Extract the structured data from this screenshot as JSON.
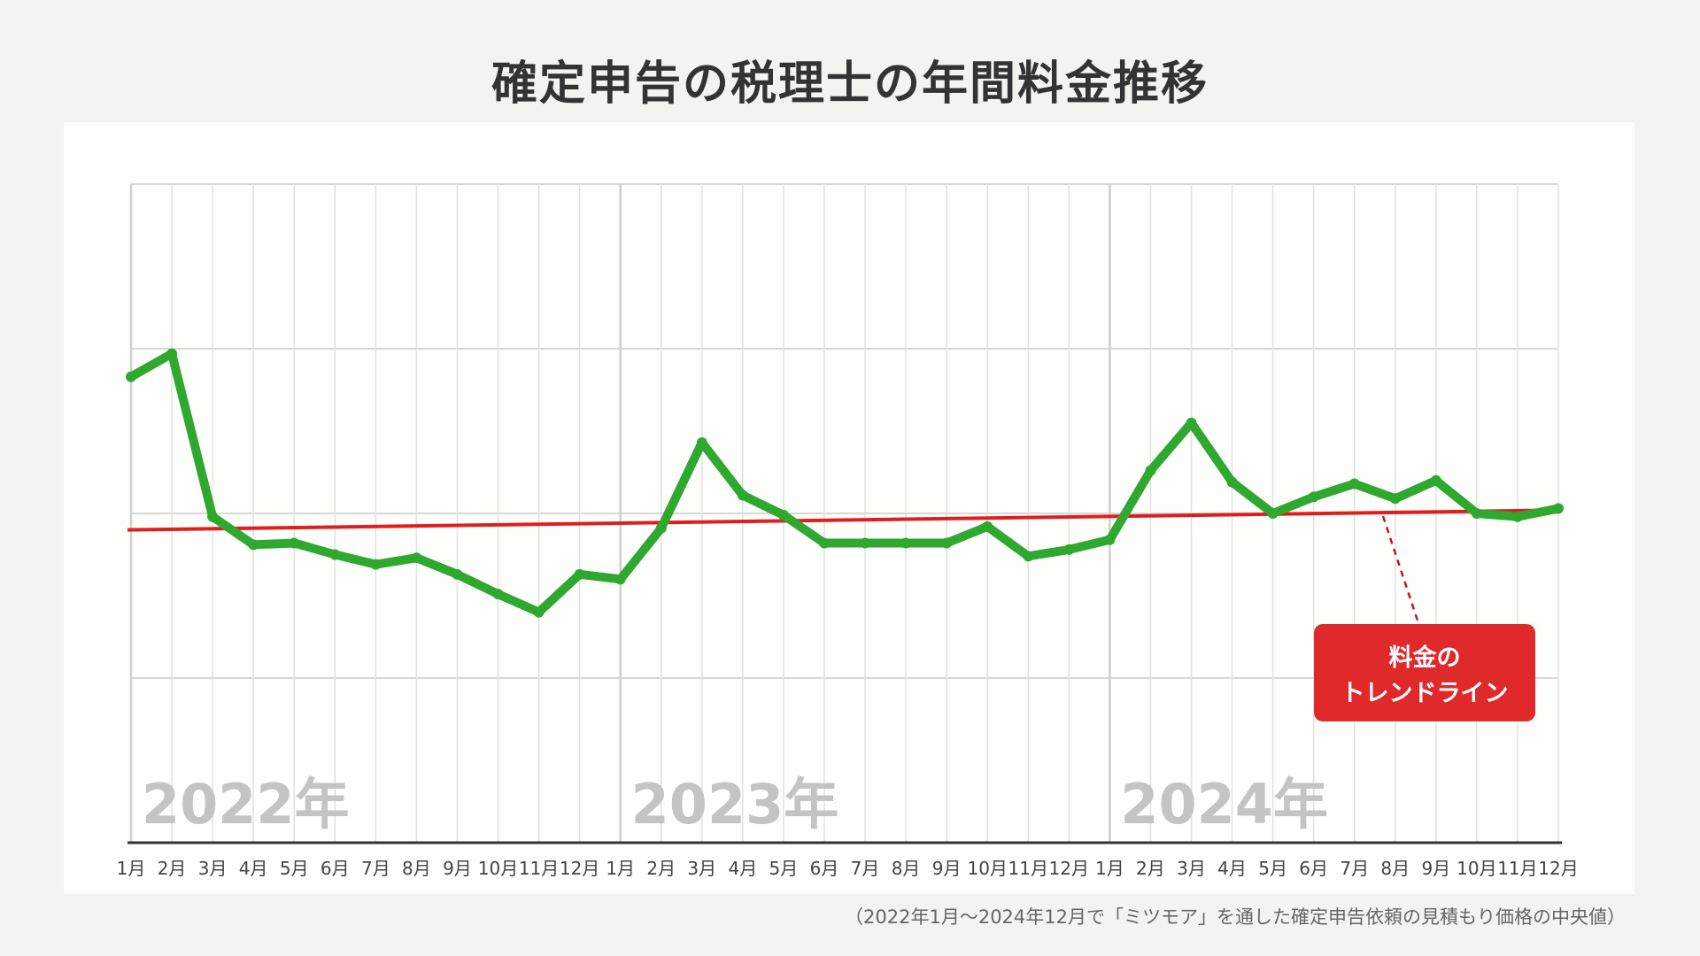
{
  "title": "確定申告の税理士の年間料金推移",
  "footnote": "（2022年1月〜2024年12月で「ミツモア」を通した確定申告依頼の見積もり価格の中央値）",
  "callout": {
    "line1": "料金の",
    "line2": "トレンドライン"
  },
  "colors": {
    "line": "#2fa82f",
    "trend": "#e01e1e",
    "callout_bg": "#e0292b",
    "grid": "#d8d8d8",
    "year_text": "#c4c4c4"
  },
  "chart_data": {
    "type": "line",
    "title": "確定申告の税理士の年間料金推移",
    "years": [
      "2022年",
      "2023年",
      "2024年"
    ],
    "x": [
      "1月",
      "2月",
      "3月",
      "4月",
      "5月",
      "6月",
      "7月",
      "8月",
      "9月",
      "10月",
      "11月",
      "12月",
      "1月",
      "2月",
      "3月",
      "4月",
      "5月",
      "6月",
      "7月",
      "8月",
      "9月",
      "10月",
      "11月",
      "12月",
      "1月",
      "2月",
      "3月",
      "4月",
      "5月",
      "6月",
      "7月",
      "8月",
      "9月",
      "10月",
      "11月",
      "12月"
    ],
    "ylim": [
      0,
      4
    ],
    "y_axis_labels_shown": false,
    "grid": true,
    "series": [
      {
        "values": [
          2.83,
          2.97,
          1.98,
          1.81,
          1.82,
          1.75,
          1.69,
          1.73,
          1.63,
          1.51,
          1.4,
          1.63,
          1.6,
          1.91,
          2.43,
          2.11,
          1.99,
          1.82,
          1.82,
          1.82,
          1.82,
          1.92,
          1.74,
          1.78,
          1.84,
          2.26,
          2.55,
          2.19,
          2.0,
          2.1,
          2.18,
          2.09,
          2.2,
          2.0,
          1.98,
          2.03
        ]
      },
      {
        "name": "料金のトレンドライン",
        "type": "trend",
        "start": 1.9,
        "end": 2.02
      }
    ]
  }
}
